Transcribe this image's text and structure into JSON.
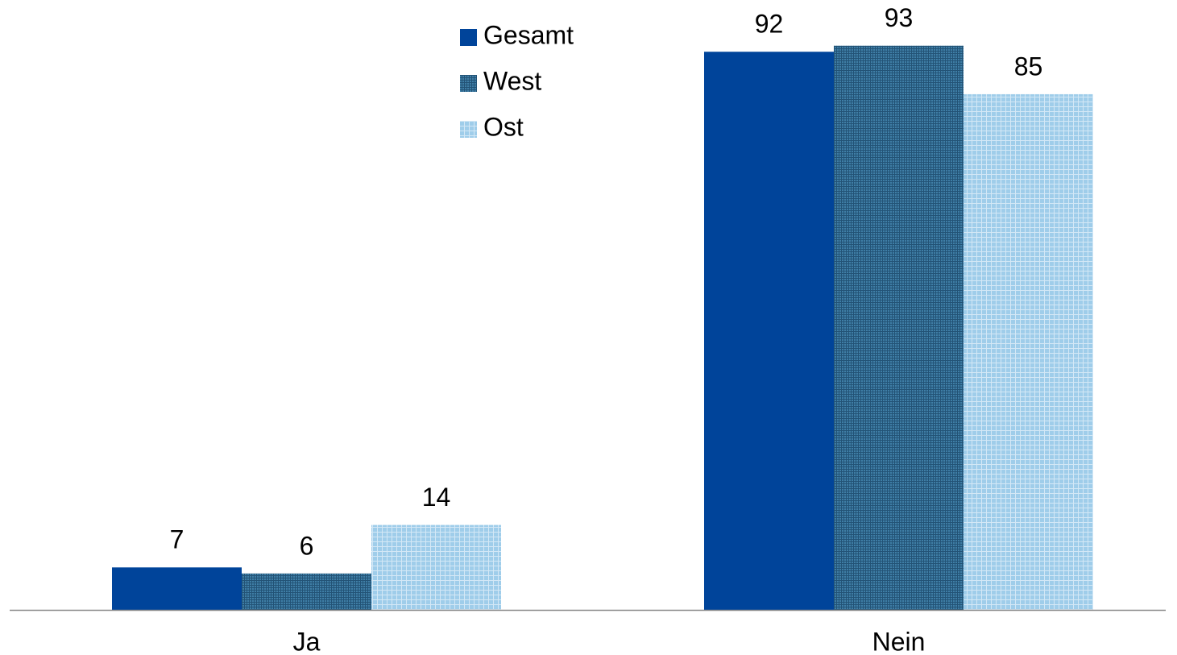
{
  "chart_data": {
    "type": "bar",
    "categories": [
      "Ja",
      "Nein"
    ],
    "series": [
      {
        "name": "Gesamt",
        "color": "#00449a",
        "values": [
          7,
          92
        ]
      },
      {
        "name": "West",
        "color": "#3f7ea6",
        "values": [
          6,
          93
        ]
      },
      {
        "name": "Ost",
        "color": "#9fcdea",
        "values": [
          14,
          85
        ]
      }
    ],
    "legend": "top"
  }
}
